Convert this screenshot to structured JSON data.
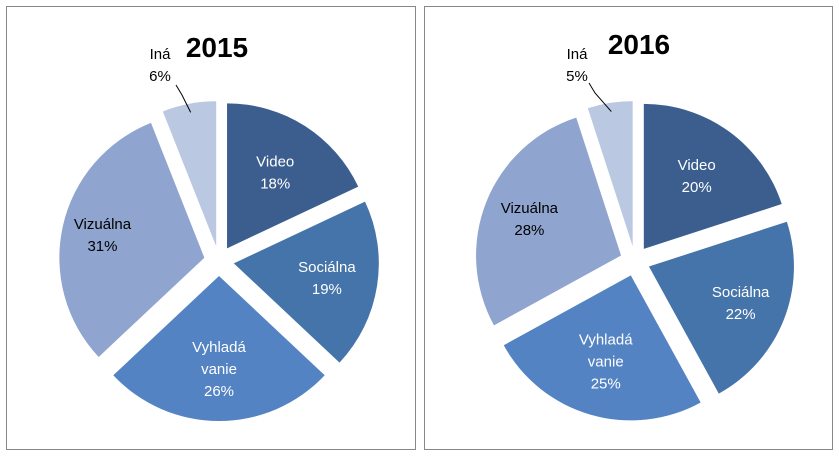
{
  "chart_data": [
    {
      "type": "pie",
      "title": "2015",
      "categories": [
        "Video",
        "Sociálna",
        "Vyhľadávanie",
        "Vizuálna",
        "Iná"
      ],
      "label_lines": [
        [
          "Video"
        ],
        [
          "Sociálna"
        ],
        [
          "Vyhladá",
          "vanie"
        ],
        [
          "Vizuálna"
        ],
        [
          "Iná"
        ]
      ],
      "values": [
        18,
        19,
        26,
        31,
        6
      ],
      "value_labels": [
        "18%",
        "19%",
        "26%",
        "31%",
        "6%"
      ],
      "colors": [
        "#3b5e8e",
        "#4574aa",
        "#5383c3",
        "#8fa5cf",
        "#bac8e2"
      ],
      "exploded": true,
      "legend": "none"
    },
    {
      "type": "pie",
      "title": "2016",
      "categories": [
        "Video",
        "Sociálna",
        "Vyhľadávanie",
        "Vizuálna",
        "Iná"
      ],
      "label_lines": [
        [
          "Video"
        ],
        [
          "Sociálna"
        ],
        [
          "Vyhladá",
          "vanie"
        ],
        [
          "Vizuálna"
        ],
        [
          "Iná"
        ]
      ],
      "values": [
        20,
        22,
        25,
        28,
        5
      ],
      "value_labels": [
        "20%",
        "22%",
        "25%",
        "28%",
        "5%"
      ],
      "colors": [
        "#3b5e8e",
        "#4574aa",
        "#5383c3",
        "#8fa5cf",
        "#bac8e2"
      ],
      "exploded": true,
      "legend": "none"
    }
  ]
}
